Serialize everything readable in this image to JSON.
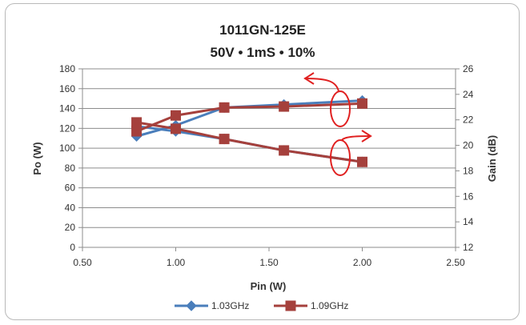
{
  "chart_data": {
    "type": "line",
    "title": "1011GN-125E",
    "subtitle": "50V • 1mS • 10%",
    "xlabel": "Pin (W)",
    "ylabel": "Po (W)",
    "y2label": "Gain (dB)",
    "xlim": [
      0.5,
      2.5
    ],
    "ylim": [
      0,
      180
    ],
    "y2lim": [
      12,
      26
    ],
    "x_ticks": [
      "0.50",
      "1.00",
      "1.50",
      "2.00",
      "2.50"
    ],
    "y_ticks": [
      "0",
      "20",
      "40",
      "60",
      "80",
      "100",
      "120",
      "140",
      "160",
      "180"
    ],
    "y2_ticks": [
      "12",
      "14",
      "16",
      "18",
      "20",
      "22",
      "24",
      "26"
    ],
    "grid": true,
    "legend_position": "bottom",
    "series": [
      {
        "name": "1.03GHz",
        "color": "#4a7ebb",
        "marker": "diamond",
        "po": {
          "x": [
            0.79,
            1.0,
            1.26,
            1.58,
            2.0
          ],
          "y": [
            112,
            123,
            141,
            144,
            148
          ]
        },
        "gain": {
          "x": [
            0.79,
            1.0,
            1.26,
            1.58,
            2.0
          ],
          "y": [
            21.5,
            21.1,
            20.5,
            19.6,
            18.7
          ]
        }
      },
      {
        "name": "1.09GHz",
        "color": "#a5403c",
        "marker": "square",
        "po": {
          "x": [
            0.79,
            1.0,
            1.26,
            1.58,
            2.0
          ],
          "y": [
            117,
            133,
            141,
            142,
            145
          ]
        },
        "gain": {
          "x": [
            0.79,
            1.0,
            1.26,
            1.58,
            2.0
          ],
          "y": [
            21.8,
            21.3,
            20.5,
            19.6,
            18.7
          ]
        }
      }
    ],
    "annotations": {
      "color": "#e02020"
    }
  }
}
